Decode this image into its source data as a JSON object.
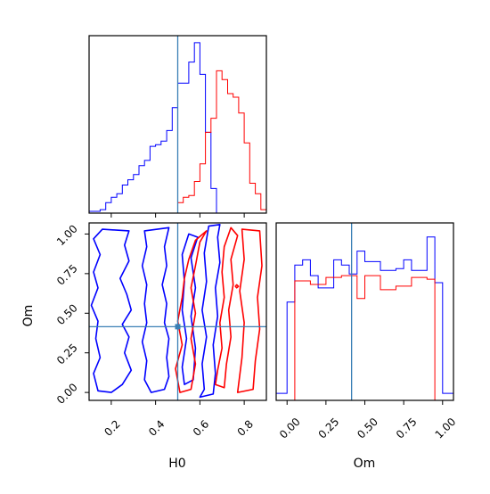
{
  "chart_data": [
    {
      "panel": "H0 marginal",
      "type": "histogram",
      "x_range": [
        0.1,
        0.9
      ],
      "truth_line": 0.5,
      "bin_edges": [
        0.1,
        0.125,
        0.15,
        0.175,
        0.2,
        0.225,
        0.25,
        0.275,
        0.3,
        0.325,
        0.35,
        0.375,
        0.4,
        0.425,
        0.45,
        0.475,
        0.5,
        0.525,
        0.55,
        0.575,
        0.6,
        0.625,
        0.65,
        0.675,
        0.7,
        0.725,
        0.75,
        0.775,
        0.8,
        0.825,
        0.85,
        0.875,
        0.9
      ],
      "series": [
        {
          "color": "#0000ff",
          "values": [
            0.01,
            0.01,
            0.02,
            0.06,
            0.09,
            0.11,
            0.16,
            0.19,
            0.22,
            0.27,
            0.3,
            0.38,
            0.39,
            0.41,
            0.47,
            0.6,
            0.74,
            0.74,
            0.86,
            0.97,
            0.79,
            0.46,
            0.14,
            0,
            0,
            0,
            0,
            0,
            0,
            0,
            0,
            0
          ]
        },
        {
          "color": "#ff0000",
          "values": [
            0,
            0,
            0,
            0,
            0,
            0,
            0,
            0,
            0,
            0,
            0,
            0,
            0,
            0,
            0,
            0,
            0.06,
            0.09,
            0.1,
            0.18,
            0.28,
            0.46,
            0.54,
            0.81,
            0.76,
            0.68,
            0.66,
            0.57,
            0.4,
            0.17,
            0.11,
            0.02
          ]
        }
      ]
    },
    {
      "panel": "H0-Om joint",
      "type": "contour",
      "xlabel": "H0",
      "ylabel": "Om",
      "x_range": [
        0.1,
        0.9
      ],
      "y_range": [
        -0.05,
        1.07
      ],
      "x_ticks": [
        "0.2",
        "0.4",
        "0.6",
        "0.8"
      ],
      "y_ticks": [
        "0.00",
        "0.25",
        "0.50",
        "0.75",
        "1.00"
      ],
      "truth_point": [
        0.5,
        0.415
      ],
      "series": [
        {
          "color": "#0000ff",
          "contours": [
            [
              [
                0.28,
                1.02
              ],
              [
                0.26,
                0.93
              ],
              [
                0.28,
                0.83
              ],
              [
                0.24,
                0.72
              ],
              [
                0.27,
                0.62
              ],
              [
                0.29,
                0.52
              ],
              [
                0.25,
                0.43
              ],
              [
                0.28,
                0.35
              ],
              [
                0.26,
                0.25
              ],
              [
                0.29,
                0.14
              ],
              [
                0.25,
                0.05
              ],
              [
                0.2,
                0.0
              ],
              [
                0.14,
                0.01
              ],
              [
                0.12,
                0.12
              ],
              [
                0.15,
                0.22
              ],
              [
                0.13,
                0.34
              ],
              [
                0.14,
                0.45
              ],
              [
                0.11,
                0.55
              ],
              [
                0.14,
                0.66
              ],
              [
                0.12,
                0.76
              ],
              [
                0.15,
                0.87
              ],
              [
                0.12,
                0.97
              ],
              [
                0.16,
                1.03
              ],
              [
                0.28,
                1.02
              ]
            ],
            [
              [
                0.46,
                1.04
              ],
              [
                0.44,
                0.92
              ],
              [
                0.45,
                0.8
              ],
              [
                0.43,
                0.68
              ],
              [
                0.45,
                0.56
              ],
              [
                0.44,
                0.44
              ],
              [
                0.46,
                0.34
              ],
              [
                0.45,
                0.22
              ],
              [
                0.46,
                0.1
              ],
              [
                0.44,
                0.02
              ],
              [
                0.38,
                0.0
              ],
              [
                0.35,
                0.08
              ],
              [
                0.36,
                0.2
              ],
              [
                0.34,
                0.32
              ],
              [
                0.36,
                0.44
              ],
              [
                0.35,
                0.56
              ],
              [
                0.36,
                0.68
              ],
              [
                0.34,
                0.8
              ],
              [
                0.36,
                0.92
              ],
              [
                0.35,
                1.02
              ],
              [
                0.46,
                1.04
              ]
            ],
            [
              [
                0.52,
                0.87
              ],
              [
                0.53,
                0.7
              ],
              [
                0.52,
                0.52
              ],
              [
                0.54,
                0.34
              ],
              [
                0.52,
                0.16
              ],
              [
                0.53,
                0.05
              ],
              [
                0.57,
                0.08
              ],
              [
                0.58,
                0.28
              ],
              [
                0.56,
                0.48
              ],
              [
                0.58,
                0.66
              ],
              [
                0.56,
                0.85
              ],
              [
                0.59,
                0.98
              ],
              [
                0.55,
                1.0
              ],
              [
                0.52,
                0.87
              ]
            ],
            [
              [
                0.64,
                1.05
              ],
              [
                0.62,
                0.88
              ],
              [
                0.63,
                0.7
              ],
              [
                0.61,
                0.52
              ],
              [
                0.63,
                0.35
              ],
              [
                0.61,
                0.18
              ],
              [
                0.62,
                0.02
              ],
              [
                0.6,
                -0.03
              ],
              [
                0.66,
                -0.01
              ],
              [
                0.67,
                0.12
              ],
              [
                0.66,
                0.3
              ],
              [
                0.68,
                0.48
              ],
              [
                0.67,
                0.66
              ],
              [
                0.69,
                0.82
              ],
              [
                0.68,
                0.98
              ],
              [
                0.69,
                1.06
              ],
              [
                0.64,
                1.05
              ]
            ]
          ]
        },
        {
          "color": "#ff0000",
          "contours": [
            [
              [
                0.52,
                0.6
              ],
              [
                0.5,
                0.45
              ],
              [
                0.52,
                0.3
              ],
              [
                0.49,
                0.15
              ],
              [
                0.51,
                0.0
              ],
              [
                0.56,
                0.02
              ],
              [
                0.58,
                0.18
              ],
              [
                0.56,
                0.34
              ],
              [
                0.58,
                0.5
              ],
              [
                0.56,
                0.66
              ],
              [
                0.58,
                0.8
              ],
              [
                0.6,
                0.95
              ],
              [
                0.63,
                1.02
              ],
              [
                0.58,
                0.96
              ],
              [
                0.55,
                0.84
              ],
              [
                0.53,
                0.72
              ],
              [
                0.52,
                0.6
              ]
            ],
            [
              [
                0.67,
                0.05
              ],
              [
                0.71,
                0.03
              ],
              [
                0.72,
                0.18
              ],
              [
                0.74,
                0.35
              ],
              [
                0.73,
                0.52
              ],
              [
                0.75,
                0.68
              ],
              [
                0.74,
                0.84
              ],
              [
                0.77,
                0.99
              ],
              [
                0.74,
                1.04
              ],
              [
                0.71,
                0.92
              ],
              [
                0.7,
                0.76
              ],
              [
                0.71,
                0.6
              ],
              [
                0.69,
                0.44
              ],
              [
                0.7,
                0.28
              ],
              [
                0.68,
                0.14
              ],
              [
                0.67,
                0.05
              ]
            ],
            [
              [
                0.77,
                0.0
              ],
              [
                0.84,
                0.02
              ],
              [
                0.85,
                0.2
              ],
              [
                0.87,
                0.4
              ],
              [
                0.86,
                0.6
              ],
              [
                0.88,
                0.8
              ],
              [
                0.87,
                1.02
              ],
              [
                0.79,
                1.03
              ],
              [
                0.8,
                0.84
              ],
              [
                0.78,
                0.64
              ],
              [
                0.8,
                0.44
              ],
              [
                0.79,
                0.22
              ],
              [
                0.77,
                0.0
              ]
            ],
            [
              [
                0.774,
                0.67
              ],
              [
                0.766,
                0.68
              ],
              [
                0.76,
                0.67
              ],
              [
                0.766,
                0.66
              ],
              [
                0.774,
                0.67
              ]
            ]
          ]
        }
      ]
    },
    {
      "panel": "Om marginal",
      "type": "histogram",
      "xlabel": "Om",
      "x_range": [
        -0.07,
        1.07
      ],
      "x_ticks": [
        "0.00",
        "0.25",
        "0.50",
        "0.75",
        "1.00"
      ],
      "truth_line": 0.415,
      "bin_edges": [
        -0.07,
        0.0,
        0.05,
        0.1,
        0.15,
        0.2,
        0.25,
        0.3,
        0.35,
        0.4,
        0.45,
        0.5,
        0.55,
        0.6,
        0.65,
        0.7,
        0.75,
        0.8,
        0.85,
        0.9,
        0.95,
        1.0,
        1.07
      ],
      "series": [
        {
          "color": "#0000ff",
          "values": [
            0.04,
            0.56,
            0.77,
            0.8,
            0.71,
            0.64,
            0.64,
            0.8,
            0.77,
            0.72,
            0.85,
            0.79,
            0.79,
            0.74,
            0.74,
            0.75,
            0.8,
            0.74,
            0.74,
            0.93,
            0.67,
            0.04
          ]
        },
        {
          "color": "#ff0000",
          "values": [
            0,
            0,
            0.68,
            0.68,
            0.66,
            0.66,
            0.7,
            0.7,
            0.71,
            0.71,
            0.58,
            0.71,
            0.71,
            0.63,
            0.63,
            0.65,
            0.65,
            0.7,
            0.7,
            0.69,
            0,
            0
          ]
        }
      ]
    }
  ]
}
